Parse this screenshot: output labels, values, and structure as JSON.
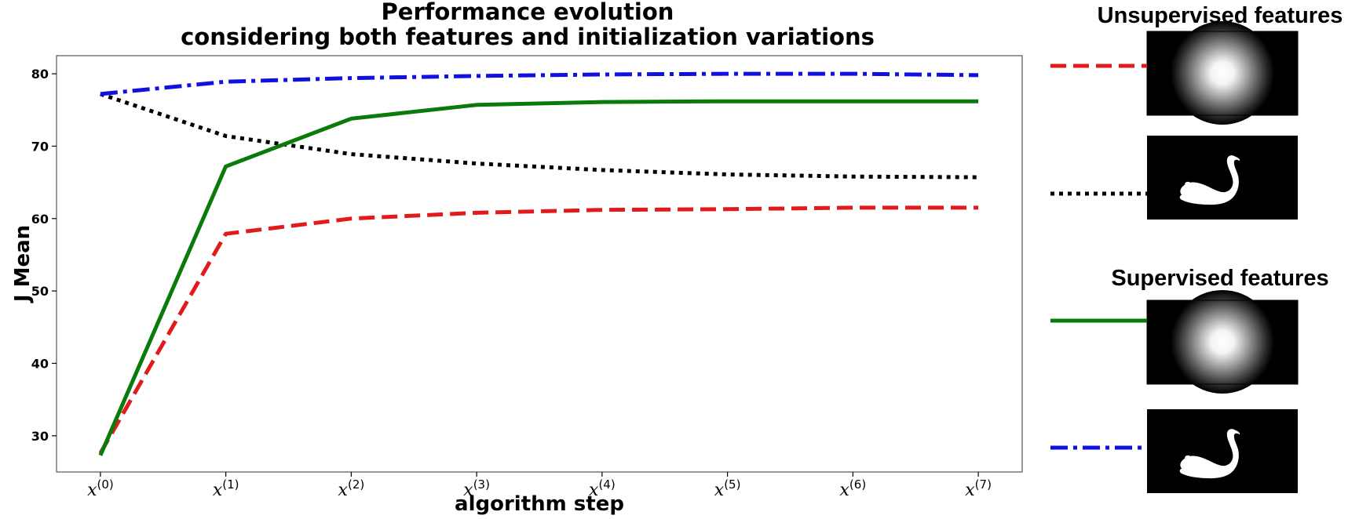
{
  "chart_data": {
    "type": "line",
    "title": [
      "Performance evolution",
      "considering both features and initialization variations"
    ],
    "xlabel": "algorithm step",
    "ylabel": "J Mean",
    "x": [
      0,
      1,
      2,
      3,
      4,
      5,
      6,
      7
    ],
    "xtick_labels": [
      {
        "base": "x",
        "sup": "(0)"
      },
      {
        "base": "x",
        "sup": "(1)"
      },
      {
        "base": "x",
        "sup": "(2)"
      },
      {
        "base": "x",
        "sup": "(3)"
      },
      {
        "base": "x",
        "sup": "(4)"
      },
      {
        "base": "x",
        "sup": "(5)"
      },
      {
        "base": "x",
        "sup": "(6)"
      },
      {
        "base": "x",
        "sup": "(7)"
      }
    ],
    "yticks": [
      30,
      40,
      50,
      60,
      70,
      80
    ],
    "ylim": [
      25,
      82.5
    ],
    "xlim": [
      -0.35,
      7.35
    ],
    "grid": false,
    "legend_position": "right",
    "series": [
      {
        "id": "unsup-gaussian",
        "values": [
          27.6,
          57.9,
          60.0,
          60.8,
          61.2,
          61.3,
          61.5,
          61.5
        ],
        "color": "#e31a1c",
        "style": "dashed",
        "init": "gaussian"
      },
      {
        "id": "unsup-mask",
        "values": [
          77.2,
          71.4,
          68.9,
          67.6,
          66.7,
          66.1,
          65.8,
          65.7
        ],
        "color": "#000000",
        "style": "dotted",
        "init": "mask"
      },
      {
        "id": "sup-gaussian",
        "values": [
          27.3,
          67.2,
          73.8,
          75.7,
          76.1,
          76.2,
          76.2,
          76.2
        ],
        "color": "#0a7a0a",
        "style": "solid",
        "init": "gaussian"
      },
      {
        "id": "sup-mask",
        "values": [
          77.2,
          78.9,
          79.4,
          79.7,
          79.9,
          80.0,
          80.0,
          79.8
        ],
        "color": "#1010e0",
        "style": "dashdot",
        "init": "mask"
      }
    ],
    "legend_groups": [
      {
        "heading": "Unsupervised features",
        "series": [
          "unsup-gaussian",
          "unsup-mask"
        ]
      },
      {
        "heading": "Supervised features",
        "series": [
          "sup-gaussian",
          "sup-mask"
        ]
      }
    ]
  }
}
